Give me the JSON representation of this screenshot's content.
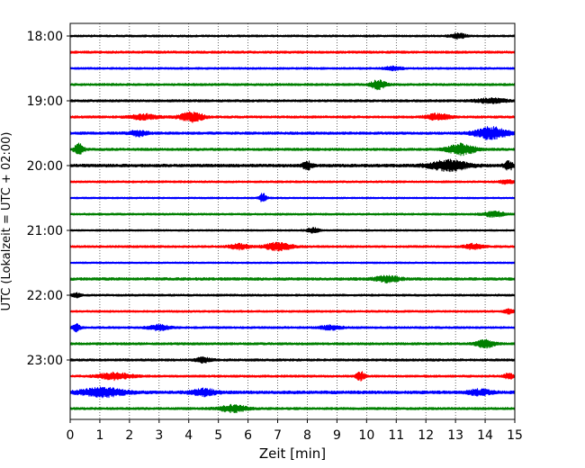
{
  "chart_data": {
    "type": "line",
    "title": "",
    "xlabel": "Zeit  [min]",
    "ylabel": "UTC (Lokalzeit = UTC + 02:00)",
    "xlim": [
      0,
      15
    ],
    "x_ticks": [
      0,
      1,
      2,
      3,
      4,
      5,
      6,
      7,
      8,
      9,
      10,
      11,
      12,
      13,
      14,
      15
    ],
    "x_tick_labels": [
      "0",
      "1",
      "2",
      "3",
      "4",
      "5",
      "6",
      "7",
      "8",
      "9",
      "10",
      "11",
      "12",
      "13",
      "14",
      "15"
    ],
    "y_tick_labels": [
      "18:00",
      "19:00",
      "20:00",
      "21:00",
      "22:00",
      "23:00"
    ],
    "y_tick_label_trace_index": [
      0,
      4,
      8,
      12,
      16,
      20
    ],
    "x_grid": true,
    "x_grid_style": "dotted",
    "trace_colors": [
      "#000000",
      "#ff0000",
      "#0000ff",
      "#008000"
    ],
    "series": [
      {
        "start": "18:00",
        "color": "#000000",
        "base_amplitude": 0.12,
        "bursts": [
          {
            "x": 13.1,
            "amp": 0.3,
            "w": 0.5
          }
        ]
      },
      {
        "start": "18:15",
        "color": "#ff0000",
        "base_amplitude": 0.14,
        "bursts": []
      },
      {
        "start": "18:30",
        "color": "#0000ff",
        "base_amplitude": 0.12,
        "bursts": [
          {
            "x": 10.9,
            "amp": 0.2,
            "w": 0.6
          }
        ]
      },
      {
        "start": "18:45",
        "color": "#008000",
        "base_amplitude": 0.14,
        "bursts": [
          {
            "x": 10.4,
            "amp": 0.55,
            "w": 0.5
          }
        ]
      },
      {
        "start": "19:00",
        "color": "#000000",
        "base_amplitude": 0.14,
        "bursts": [
          {
            "x": 14.2,
            "amp": 0.25,
            "w": 1.0
          }
        ]
      },
      {
        "start": "19:15",
        "color": "#ff0000",
        "base_amplitude": 0.14,
        "bursts": [
          {
            "x": 2.5,
            "amp": 0.3,
            "w": 1.0
          },
          {
            "x": 4.1,
            "amp": 0.55,
            "w": 0.8
          },
          {
            "x": 12.4,
            "amp": 0.35,
            "w": 0.8
          }
        ]
      },
      {
        "start": "19:30",
        "color": "#0000ff",
        "base_amplitude": 0.15,
        "bursts": [
          {
            "x": 2.3,
            "amp": 0.35,
            "w": 0.6
          },
          {
            "x": 14.2,
            "amp": 0.7,
            "w": 1.1
          }
        ]
      },
      {
        "start": "19:45",
        "color": "#008000",
        "base_amplitude": 0.15,
        "bursts": [
          {
            "x": 0.3,
            "amp": 0.7,
            "w": 0.3
          },
          {
            "x": 13.2,
            "amp": 0.65,
            "w": 0.9
          }
        ]
      },
      {
        "start": "20:00",
        "color": "#000000",
        "base_amplitude": 0.18,
        "bursts": [
          {
            "x": 8.0,
            "amp": 0.5,
            "w": 0.3
          },
          {
            "x": 12.8,
            "amp": 0.6,
            "w": 1.3
          },
          {
            "x": 14.8,
            "amp": 0.5,
            "w": 0.3
          }
        ]
      },
      {
        "start": "20:15",
        "color": "#ff0000",
        "base_amplitude": 0.12,
        "bursts": [
          {
            "x": 14.7,
            "amp": 0.2,
            "w": 0.5
          }
        ]
      },
      {
        "start": "20:30",
        "color": "#0000ff",
        "base_amplitude": 0.1,
        "bursts": [
          {
            "x": 6.5,
            "amp": 0.55,
            "w": 0.25
          }
        ]
      },
      {
        "start": "20:45",
        "color": "#008000",
        "base_amplitude": 0.12,
        "bursts": [
          {
            "x": 14.3,
            "amp": 0.3,
            "w": 0.7
          }
        ]
      },
      {
        "start": "21:00",
        "color": "#000000",
        "base_amplitude": 0.1,
        "bursts": [
          {
            "x": 8.2,
            "amp": 0.3,
            "w": 0.4
          }
        ]
      },
      {
        "start": "21:15",
        "color": "#ff0000",
        "base_amplitude": 0.13,
        "bursts": [
          {
            "x": 5.7,
            "amp": 0.35,
            "w": 0.6
          },
          {
            "x": 7.0,
            "amp": 0.45,
            "w": 0.9
          },
          {
            "x": 13.6,
            "amp": 0.3,
            "w": 0.6
          }
        ]
      },
      {
        "start": "21:30",
        "color": "#0000ff",
        "base_amplitude": 0.1,
        "bursts": []
      },
      {
        "start": "21:45",
        "color": "#008000",
        "base_amplitude": 0.16,
        "bursts": [
          {
            "x": 10.7,
            "amp": 0.35,
            "w": 0.8
          }
        ]
      },
      {
        "start": "22:00",
        "color": "#000000",
        "base_amplitude": 0.12,
        "bursts": [
          {
            "x": 0.2,
            "amp": 0.25,
            "w": 0.3
          }
        ]
      },
      {
        "start": "22:15",
        "color": "#ff0000",
        "base_amplitude": 0.12,
        "bursts": [
          {
            "x": 14.8,
            "amp": 0.25,
            "w": 0.3
          }
        ]
      },
      {
        "start": "22:30",
        "color": "#0000ff",
        "base_amplitude": 0.13,
        "bursts": [
          {
            "x": 0.2,
            "amp": 0.45,
            "w": 0.25
          },
          {
            "x": 3.0,
            "amp": 0.3,
            "w": 0.7
          },
          {
            "x": 8.8,
            "amp": 0.25,
            "w": 0.7
          }
        ]
      },
      {
        "start": "22:45",
        "color": "#008000",
        "base_amplitude": 0.14,
        "bursts": [
          {
            "x": 14.0,
            "amp": 0.45,
            "w": 0.6
          }
        ]
      },
      {
        "start": "23:00",
        "color": "#000000",
        "base_amplitude": 0.14,
        "bursts": [
          {
            "x": 4.5,
            "amp": 0.3,
            "w": 0.5
          }
        ]
      },
      {
        "start": "23:15",
        "color": "#ff0000",
        "base_amplitude": 0.13,
        "bursts": [
          {
            "x": 1.5,
            "amp": 0.4,
            "w": 1.1
          },
          {
            "x": 9.8,
            "amp": 0.5,
            "w": 0.3
          },
          {
            "x": 14.8,
            "amp": 0.35,
            "w": 0.3
          }
        ]
      },
      {
        "start": "23:30",
        "color": "#0000ff",
        "base_amplitude": 0.18,
        "bursts": [
          {
            "x": 1.1,
            "amp": 0.5,
            "w": 1.5
          },
          {
            "x": 4.5,
            "amp": 0.4,
            "w": 0.8
          },
          {
            "x": 13.8,
            "amp": 0.3,
            "w": 0.8
          }
        ]
      },
      {
        "start": "23:45",
        "color": "#008000",
        "base_amplitude": 0.14,
        "bursts": [
          {
            "x": 5.5,
            "amp": 0.4,
            "w": 0.9
          }
        ]
      }
    ]
  }
}
